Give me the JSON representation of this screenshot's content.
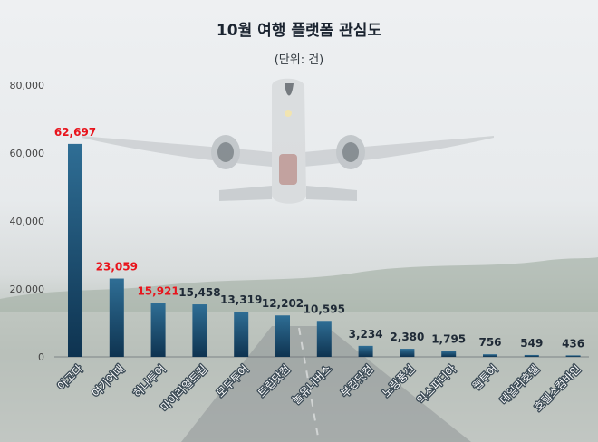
{
  "chart_data": {
    "type": "bar",
    "title": "10월 여행 플랫폼 관심도",
    "subtitle": "(단위: 건)",
    "categories": [
      "아고다",
      "여기어때",
      "하나투어",
      "마이리얼트립",
      "모두투어",
      "트립닷컴",
      "놀유니버스",
      "부킹닷컴",
      "노랑풍선",
      "익스피디아",
      "웹투어",
      "데일리호텔",
      "호텔스컴바인"
    ],
    "values": [
      62697,
      23059,
      15921,
      15458,
      13319,
      12202,
      10595,
      3234,
      2380,
      1795,
      756,
      549,
      436
    ],
    "value_labels": [
      "62,697",
      "23,059",
      "15,921",
      "15,458",
      "13,319",
      "12,202",
      "10,595",
      "3,234",
      "2,380",
      "1,795",
      "756",
      "549",
      "436"
    ],
    "highlighted": [
      true,
      true,
      true,
      false,
      false,
      false,
      false,
      false,
      false,
      false,
      false,
      false,
      false
    ],
    "yticks": [
      "0",
      "20,000",
      "40,000",
      "60,000",
      "80,000"
    ],
    "ylim": [
      0,
      80000
    ],
    "grid": false,
    "legend": "none",
    "colors": {
      "bar_top": "#2f6e95",
      "bar_bottom": "#0e3350",
      "highlight_label": "#e8141c",
      "label": "#1f2a36",
      "axis": "#444444"
    }
  }
}
